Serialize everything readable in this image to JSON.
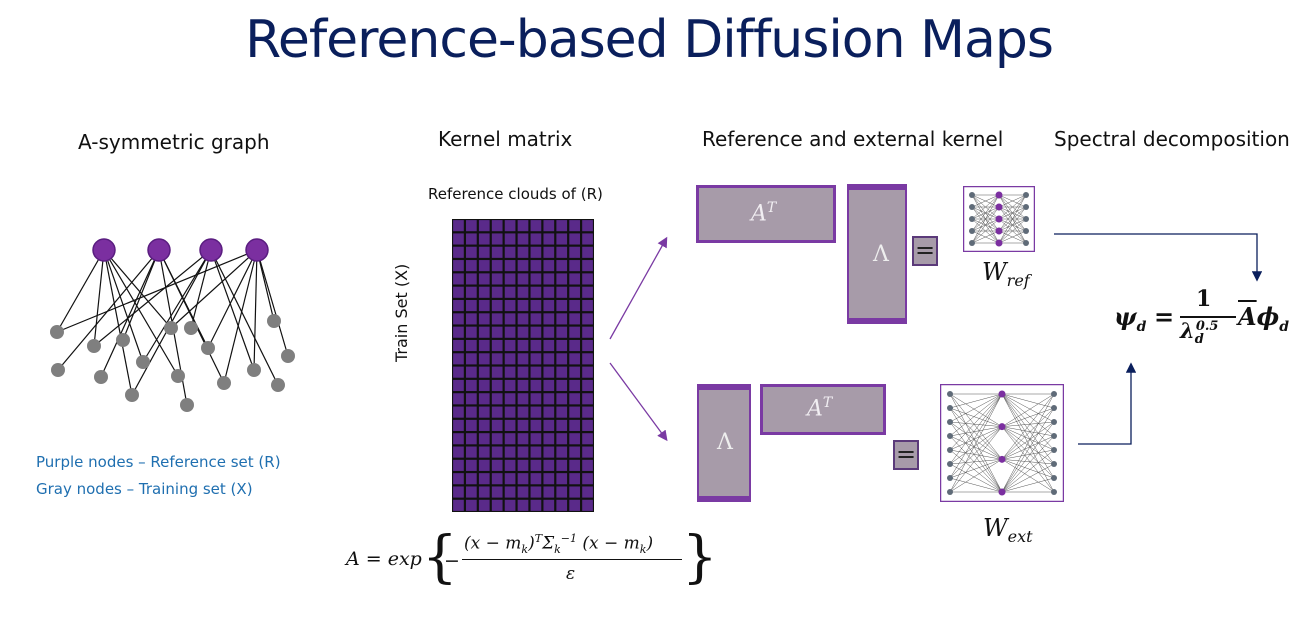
{
  "title": "Reference-based Diffusion Maps",
  "sections": {
    "graph": "A-symmetric graph",
    "kernel": "Kernel matrix",
    "reference": "Reference and external kernel",
    "spectral": "Spectral decomposition"
  },
  "legend": {
    "purple": "Purple nodes – Reference set (R)",
    "gray": "Gray nodes – Training set (X)"
  },
  "kernel_matrix": {
    "top_label": "Reference clouds of (R)",
    "side_label": "Train Set (X)",
    "formula_lhs": "A = exp",
    "formula_num": "(x − m",
    "formula_den": "ε"
  },
  "reference_kernel": {
    "at_label": "A",
    "at_sup": "T",
    "w_ref": "W",
    "w_ref_sub": "ref",
    "w_ext": "W",
    "w_ext_sub": "ext",
    "equals": "="
  },
  "spectral": {
    "psi": "ψ",
    "d": "d",
    "one": "1",
    "lambda": "λ",
    "exp": "0.5",
    "abar": "A",
    "phi": "ϕ"
  },
  "colors": {
    "title": "#0a1f5c",
    "purple_node": "#7b2fa0",
    "gray_node": "#7f7f7f",
    "matrix_fill": "#5a2a8a",
    "box_fill": "#a79ba9",
    "legend_text": "#1f6fb0"
  }
}
